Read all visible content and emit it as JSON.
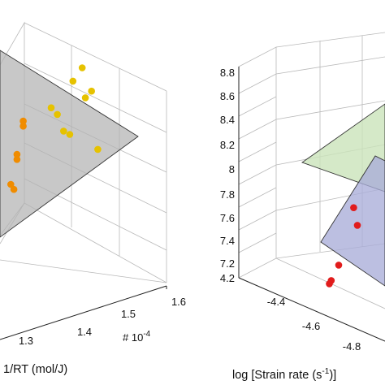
{
  "chart_data": [
    {
      "type": "scatter",
      "panel": "left",
      "xlabel": "1/RT (mol/J)",
      "x_ticks": [
        "1.3",
        "1.4",
        "1.5",
        "1.6"
      ],
      "x_multiplier_text": "# 10",
      "x_multiplier_exp": "-4",
      "grid": true,
      "planes": [
        {
          "color": "#b3b3b3"
        }
      ],
      "series": [
        {
          "color": "#e6c200",
          "points": [
            {
              "x": 1.55,
              "y": 0.9
            },
            {
              "x": 1.52,
              "y": 0.82
            },
            {
              "x": 1.58,
              "y": 0.76
            },
            {
              "x": 1.56,
              "y": 0.72
            },
            {
              "x": 1.45,
              "y": 0.66
            },
            {
              "x": 1.47,
              "y": 0.62
            },
            {
              "x": 1.49,
              "y": 0.52
            },
            {
              "x": 1.51,
              "y": 0.5
            },
            {
              "x": 1.6,
              "y": 0.41
            }
          ]
        },
        {
          "color": "#f08c00",
          "points": [
            {
              "x": 1.36,
              "y": 0.58
            },
            {
              "x": 1.36,
              "y": 0.55
            },
            {
              "x": 1.34,
              "y": 0.38
            },
            {
              "x": 1.34,
              "y": 0.35
            },
            {
              "x": 1.32,
              "y": 0.2
            },
            {
              "x": 1.33,
              "y": 0.17
            }
          ]
        }
      ]
    },
    {
      "type": "scatter",
      "panel": "right",
      "xlabel": "log [Strain rate (s",
      "xlabel_exp": "-1",
      "xlabel_end": ")]",
      "z_ticks": [
        "7.2",
        "7.4",
        "7.6",
        "7.8",
        "8",
        "8.2",
        "8.4",
        "8.6",
        "8.8"
      ],
      "x_ticks": [
        "4.2",
        "-4.4",
        "-4.6",
        "-4.8"
      ],
      "grid": true,
      "planes": [
        {
          "color": "#c9e3b8"
        },
        {
          "color": "#a9add9"
        }
      ],
      "series": [
        {
          "color": "#e11c1c",
          "points": [
            {
              "x": -4.78,
              "z": 7.73
            },
            {
              "x": -4.8,
              "z": 7.58
            },
            {
              "x": -4.7,
              "z": 7.22
            },
            {
              "x": -4.66,
              "z": 7.08
            },
            {
              "x": -4.65,
              "z": 7.05
            }
          ]
        }
      ]
    }
  ]
}
